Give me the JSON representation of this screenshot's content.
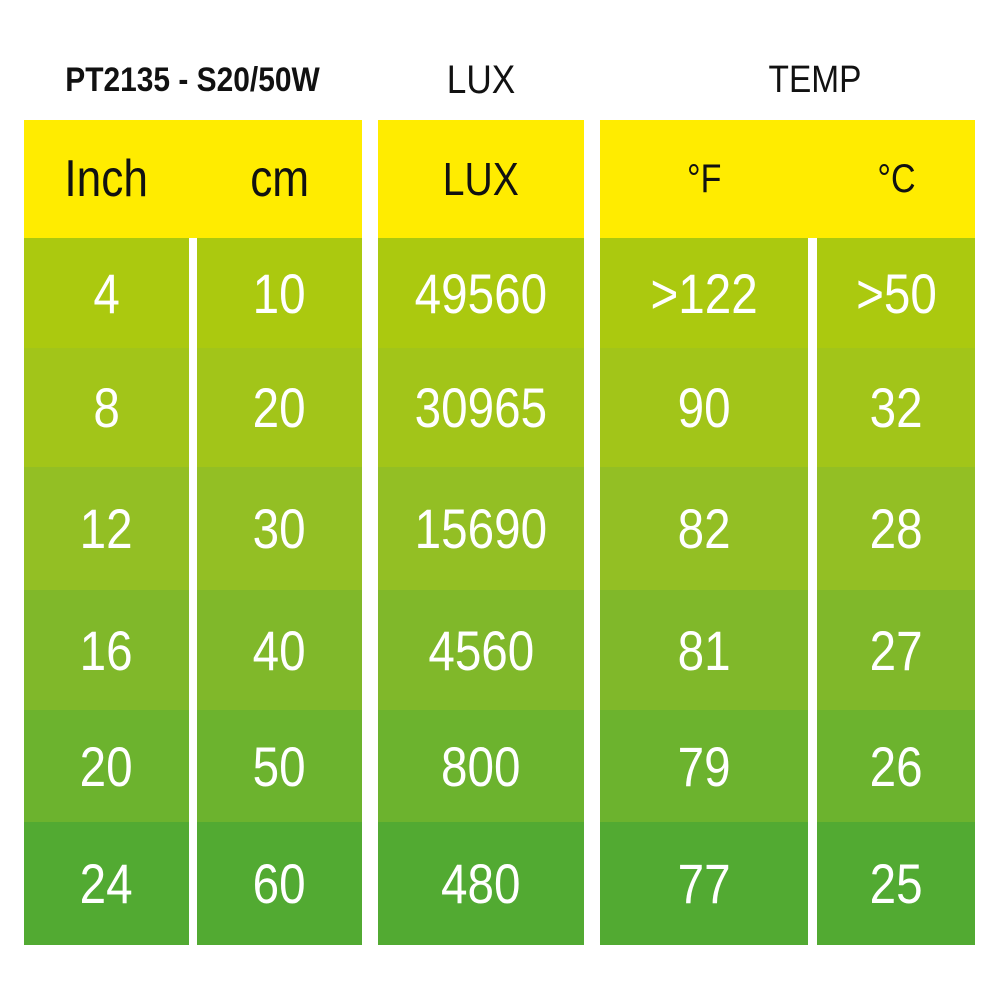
{
  "titles": {
    "model": "PT2135 - S20/50W",
    "lux": "LUX",
    "temp": "TEMP"
  },
  "headers": {
    "inch": "Inch",
    "cm": "cm",
    "lux": "LUX",
    "f": "°F",
    "c": "°C"
  },
  "colors": {
    "header": "#ffec00",
    "rows": [
      "#abc90f",
      "#a2c519",
      "#93bf24",
      "#80b82a",
      "#6cb32e",
      "#52aa32"
    ]
  },
  "rows": [
    {
      "inch": "4",
      "cm": "10",
      "lux": "49560",
      "f": ">122",
      "c": ">50"
    },
    {
      "inch": "8",
      "cm": "20",
      "lux": "30965",
      "f": "90",
      "c": "32"
    },
    {
      "inch": "12",
      "cm": "30",
      "lux": "15690",
      "f": "82",
      "c": "28"
    },
    {
      "inch": "16",
      "cm": "40",
      "lux": "4560",
      "f": "81",
      "c": "27"
    },
    {
      "inch": "20",
      "cm": "50",
      "lux": "800",
      "f": "79",
      "c": "26"
    },
    {
      "inch": "24",
      "cm": "60",
      "lux": "480",
      "f": "77",
      "c": "25"
    }
  ]
}
